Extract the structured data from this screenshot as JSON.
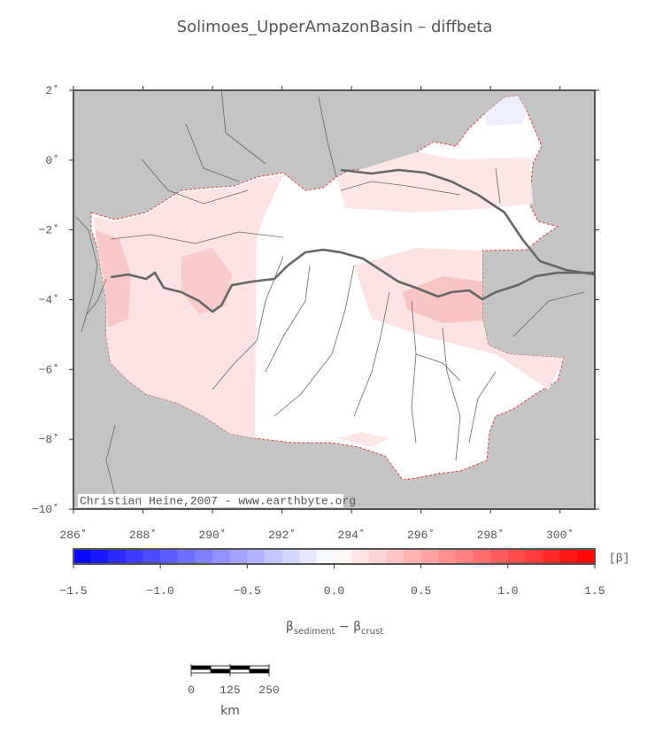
{
  "map": {
    "title": "Solimoes_UpperAmazonBasin – diffbeta",
    "credit": "Christian Heine,2007 - www.earthbyte.org",
    "xlim": [
      286,
      301
    ],
    "ylim": [
      -10,
      2
    ],
    "xticks": [
      {
        "value": 286,
        "label": "286˚"
      },
      {
        "value": 288,
        "label": "288˚"
      },
      {
        "value": 290,
        "label": "290˚"
      },
      {
        "value": 292,
        "label": "292˚"
      },
      {
        "value": 294,
        "label": "294˚"
      },
      {
        "value": 296,
        "label": "296˚"
      },
      {
        "value": 298,
        "label": "298˚"
      },
      {
        "value": 300,
        "label": "300˚"
      }
    ],
    "yticks": [
      {
        "value": 2,
        "label": "2˚"
      },
      {
        "value": 0,
        "label": "0˚"
      },
      {
        "value": -2,
        "label": "−2˚"
      },
      {
        "value": -4,
        "label": "−4˚"
      },
      {
        "value": -6,
        "label": "−6˚"
      },
      {
        "value": -8,
        "label": "−8˚"
      },
      {
        "value": -10,
        "label": "−10˚"
      }
    ],
    "colorbar": {
      "lim": [
        -1.5,
        1.5
      ],
      "step": 0.1,
      "colors": [
        "#0000ff",
        "#ffffff",
        "#ff0000"
      ],
      "unit": "[β]",
      "ticks": [
        {
          "value": -1.5,
          "label": "−1.5"
        },
        {
          "value": -1.0,
          "label": "−1.0"
        },
        {
          "value": -0.5,
          "label": "−0.5"
        },
        {
          "value": 0,
          "label": "0.0"
        },
        {
          "value": 0.5,
          "label": "0.5"
        },
        {
          "value": 1.0,
          "label": "1.0"
        },
        {
          "value": 1.5,
          "label": "1.5"
        }
      ],
      "label": {
        "symbol": "β",
        "sub1": "sediment",
        "minus": " − β",
        "sub2": "crust"
      }
    },
    "scale_bar": {
      "ticks": [
        0,
        125,
        250
      ],
      "unit": "km"
    }
  }
}
